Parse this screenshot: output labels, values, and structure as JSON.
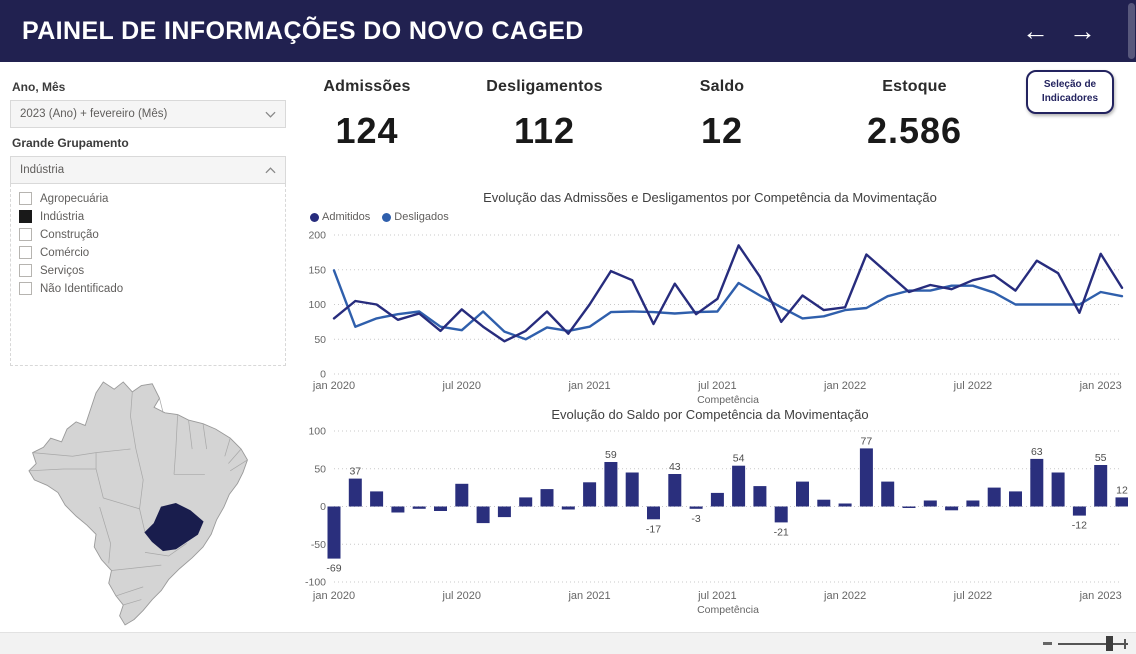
{
  "header": {
    "title": "PAINEL DE INFORMAÇÕES DO NOVO CAGED",
    "back_arrow": "←",
    "forward_arrow": "→"
  },
  "filters": {
    "ano_mes_label": "Ano, Mês",
    "ano_mes_value": "2023 (Ano) + fevereiro (Mês)",
    "grupamento_label": "Grande Grupamento",
    "grupamento_value": "Indústria",
    "options": [
      {
        "label": "Agropecuária",
        "checked": false
      },
      {
        "label": "Indústria",
        "checked": true
      },
      {
        "label": "Construção",
        "checked": false
      },
      {
        "label": "Comércio",
        "checked": false
      },
      {
        "label": "Serviços",
        "checked": false
      },
      {
        "label": "Não Identificado",
        "checked": false
      }
    ]
  },
  "kpis": [
    {
      "label": "Admissões",
      "value": "124"
    },
    {
      "label": "Desligamentos",
      "value": "112"
    },
    {
      "label": "Saldo",
      "value": "12"
    },
    {
      "label": "Estoque",
      "value": "2.586"
    }
  ],
  "selection_button": {
    "line1": "Seleção de",
    "line2": "Indicadores"
  },
  "map": {
    "highlighted_state": "Minas Gerais"
  },
  "colors": {
    "header_bg": "#212150",
    "bar": "#2A2F7D",
    "admitidos": "#272C7D",
    "desligados": "#2F5FAC",
    "map_land": "#d4d4d4",
    "map_selected": "#191d4d"
  },
  "chart_data": [
    {
      "type": "line",
      "title": "Evolução das Admissões e Desligamentos por Competência da Movimentação",
      "axis_title": "Competência",
      "ylim": [
        0,
        200
      ],
      "y_ticks": [
        0,
        50,
        100,
        150,
        200
      ],
      "grid": "dotted-horizontal",
      "legend_position": "top-left",
      "x_ticks": [
        "jan 2020",
        "jul 2020",
        "jan 2021",
        "jul 2021",
        "jan 2022",
        "jul 2022",
        "jan 2023"
      ],
      "months": [
        "jan 2020",
        "fev 2020",
        "mar 2020",
        "abr 2020",
        "mai 2020",
        "jun 2020",
        "jul 2020",
        "ago 2020",
        "set 2020",
        "out 2020",
        "nov 2020",
        "dez 2020",
        "jan 2021",
        "fev 2021",
        "mar 2021",
        "abr 2021",
        "mai 2021",
        "jun 2021",
        "jul 2021",
        "ago 2021",
        "set 2021",
        "out 2021",
        "nov 2021",
        "dez 2021",
        "jan 2022",
        "fev 2022",
        "mar 2022",
        "abr 2022",
        "mai 2022",
        "jun 2022",
        "jul 2022",
        "ago 2022",
        "set 2022",
        "out 2022",
        "nov 2022",
        "dez 2022",
        "jan 2023",
        "fev 2023"
      ],
      "series": [
        {
          "name": "Admitidos",
          "color": "#272C7D",
          "values": [
            80,
            105,
            100,
            78,
            87,
            62,
            93,
            68,
            47,
            62,
            90,
            58,
            100,
            148,
            135,
            72,
            130,
            86,
            108,
            185,
            140,
            75,
            113,
            92,
            96,
            172,
            145,
            118,
            128,
            122,
            135,
            142,
            120,
            163,
            145,
            88,
            173,
            124
          ]
        },
        {
          "name": "Desligados",
          "color": "#2F5FAC",
          "values": [
            149,
            68,
            80,
            86,
            90,
            68,
            63,
            90,
            61,
            50,
            67,
            62,
            68,
            89,
            90,
            89,
            87,
            89,
            90,
            131,
            113,
            96,
            80,
            83,
            92,
            95,
            112,
            120,
            120,
            127,
            127,
            117,
            100,
            100,
            100,
            100,
            118,
            112
          ]
        }
      ]
    },
    {
      "type": "bar",
      "title": "Evolução do Saldo por Competência da Movimentação",
      "axis_title": "Competência",
      "ylim": [
        -100,
        100
      ],
      "y_ticks": [
        100,
        50,
        0,
        -50,
        -100
      ],
      "grid": "dotted-horizontal",
      "color": "#2A2F7D",
      "x_ticks": [
        "jan 2020",
        "jul 2020",
        "jan 2021",
        "jul 2021",
        "jan 2022",
        "jul 2022",
        "jan 2023"
      ],
      "months": [
        "jan 2020",
        "fev 2020",
        "mar 2020",
        "abr 2020",
        "mai 2020",
        "jun 2020",
        "jul 2020",
        "ago 2020",
        "set 2020",
        "out 2020",
        "nov 2020",
        "dez 2020",
        "jan 2021",
        "fev 2021",
        "mar 2021",
        "abr 2021",
        "mai 2021",
        "jun 2021",
        "jul 2021",
        "ago 2021",
        "set 2021",
        "out 2021",
        "nov 2021",
        "dez 2021",
        "jan 2022",
        "fev 2022",
        "mar 2022",
        "abr 2022",
        "mai 2022",
        "jun 2022",
        "jul 2022",
        "ago 2022",
        "set 2022",
        "out 2022",
        "nov 2022",
        "dez 2022",
        "jan 2023",
        "fev 2023"
      ],
      "values": [
        -69,
        37,
        20,
        -8,
        -3,
        -6,
        30,
        -22,
        -14,
        12,
        23,
        -4,
        32,
        59,
        45,
        -17,
        43,
        -3,
        18,
        54,
        27,
        -21,
        33,
        9,
        4,
        77,
        33,
        -2,
        8,
        -5,
        8,
        25,
        20,
        63,
        45,
        -12,
        55,
        12
      ],
      "labeled_indices": [
        0,
        1,
        13,
        15,
        16,
        17,
        19,
        21,
        25,
        33,
        35,
        36,
        37
      ]
    }
  ]
}
